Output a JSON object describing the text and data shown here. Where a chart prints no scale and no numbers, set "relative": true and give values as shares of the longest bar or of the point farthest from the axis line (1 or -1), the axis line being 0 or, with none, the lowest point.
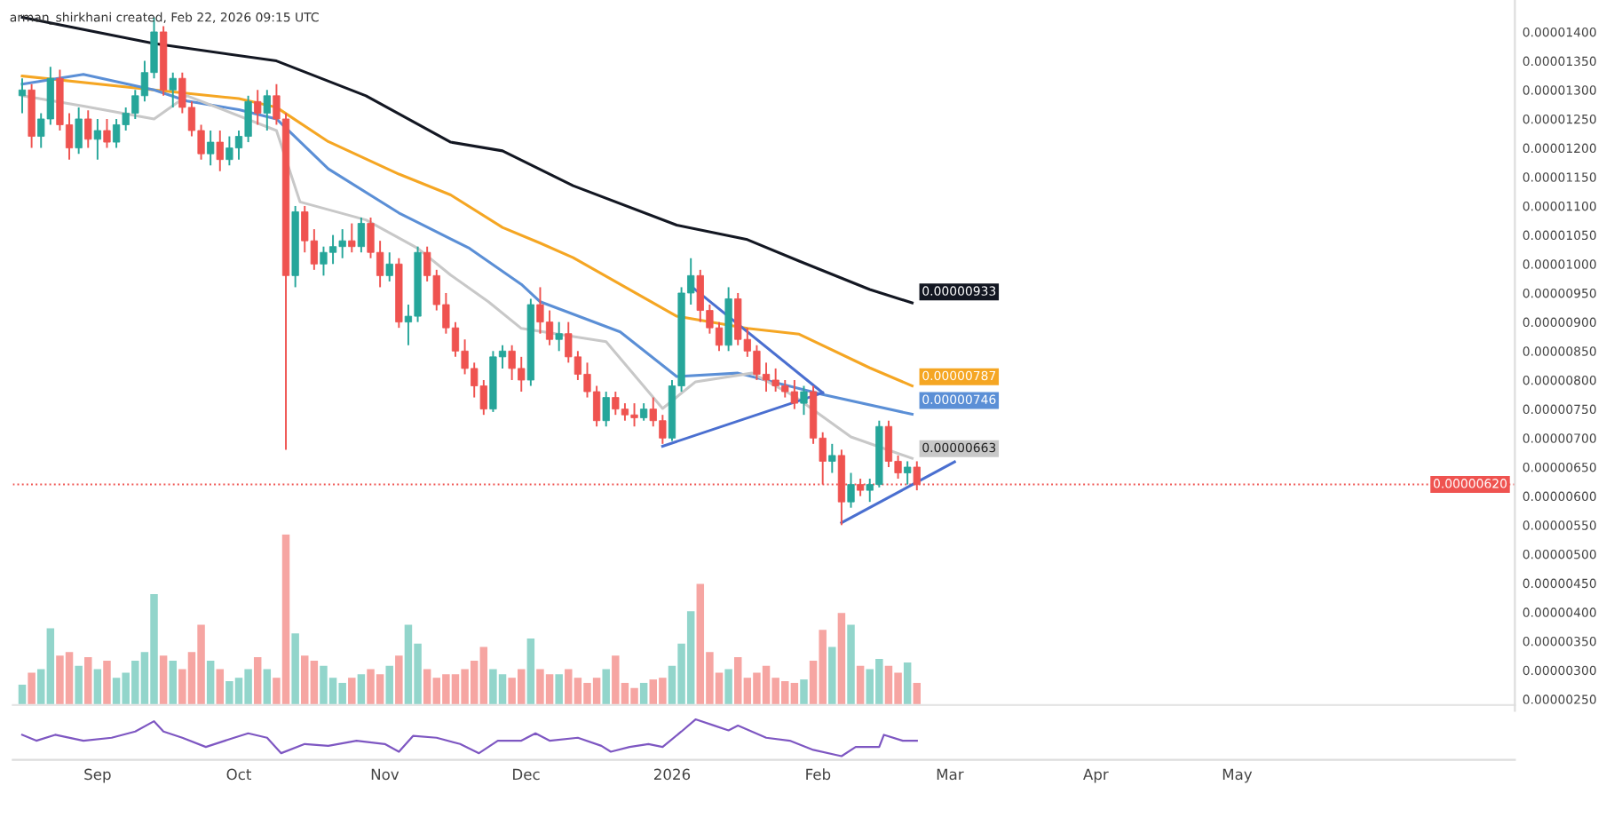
{
  "chart_data": [
    {
      "type": "candlestick",
      "title": "arman_shirkhani created, Feb 22, 2026 09:15 UTC",
      "x": [
        "2025-08-16",
        "2025-08-18",
        "2025-08-20",
        "2025-08-22",
        "2025-08-24",
        "2025-08-26",
        "2025-08-28",
        "2025-08-30",
        "2025-09-01",
        "2025-09-03",
        "2025-09-05",
        "2025-09-07",
        "2025-09-09",
        "2025-09-11",
        "2025-09-13",
        "2025-09-15",
        "2025-09-17",
        "2025-09-19",
        "2025-09-21",
        "2025-09-23",
        "2025-09-25",
        "2025-09-27",
        "2025-09-29",
        "2025-10-01",
        "2025-10-03",
        "2025-10-05",
        "2025-10-07",
        "2025-10-09",
        "2025-10-11",
        "2025-10-13",
        "2025-10-15",
        "2025-10-17",
        "2025-10-19",
        "2025-10-21",
        "2025-10-23",
        "2025-10-25",
        "2025-10-27",
        "2025-10-29",
        "2025-10-31",
        "2025-11-02",
        "2025-11-04",
        "2025-11-06",
        "2025-11-08",
        "2025-11-10",
        "2025-11-12",
        "2025-11-14",
        "2025-11-16",
        "2025-11-18",
        "2025-11-20",
        "2025-11-22",
        "2025-11-24",
        "2025-11-26",
        "2025-11-28",
        "2025-11-30",
        "2025-12-02",
        "2025-12-04",
        "2025-12-06",
        "2025-12-08",
        "2025-12-10",
        "2025-12-12",
        "2025-12-14",
        "2025-12-16",
        "2025-12-18",
        "2025-12-20",
        "2025-12-22",
        "2025-12-24",
        "2025-12-26",
        "2025-12-28",
        "2025-12-30",
        "2026-01-01",
        "2026-01-03",
        "2026-01-05",
        "2026-01-07",
        "2026-01-09",
        "2026-01-11",
        "2026-01-13",
        "2026-01-15",
        "2026-01-17",
        "2026-01-19",
        "2026-01-21",
        "2026-01-23",
        "2026-01-25",
        "2026-01-27",
        "2026-01-29",
        "2026-01-31",
        "2026-02-02",
        "2026-02-04",
        "2026-02-06",
        "2026-02-08",
        "2026-02-10",
        "2026-02-12",
        "2026-02-14",
        "2026-02-16",
        "2026-02-18",
        "2026-02-20",
        "2026-02-22"
      ],
      "ohlc": [
        [
          1.29e-05,
          1.32e-05,
          1.26e-05,
          1.3e-05
        ],
        [
          1.3e-05,
          1.31e-05,
          1.2e-05,
          1.22e-05
        ],
        [
          1.22e-05,
          1.26e-05,
          1.2e-05,
          1.25e-05
        ],
        [
          1.25e-05,
          1.34e-05,
          1.24e-05,
          1.32e-05
        ],
        [
          1.32e-05,
          1.335e-05,
          1.23e-05,
          1.24e-05
        ],
        [
          1.24e-05,
          1.26e-05,
          1.18e-05,
          1.2e-05
        ],
        [
          1.2e-05,
          1.27e-05,
          1.19e-05,
          1.25e-05
        ],
        [
          1.25e-05,
          1.265e-05,
          1.2e-05,
          1.215e-05
        ],
        [
          1.215e-05,
          1.25e-05,
          1.18e-05,
          1.23e-05
        ],
        [
          1.23e-05,
          1.25e-05,
          1.2e-05,
          1.21e-05
        ],
        [
          1.21e-05,
          1.25e-05,
          1.2e-05,
          1.24e-05
        ],
        [
          1.24e-05,
          1.27e-05,
          1.23e-05,
          1.26e-05
        ],
        [
          1.26e-05,
          1.3e-05,
          1.25e-05,
          1.29e-05
        ],
        [
          1.29e-05,
          1.35e-05,
          1.28e-05,
          1.33e-05
        ],
        [
          1.33e-05,
          1.425e-05,
          1.32e-05,
          1.4e-05
        ],
        [
          1.4e-05,
          1.41e-05,
          1.29e-05,
          1.3e-05
        ],
        [
          1.3e-05,
          1.33e-05,
          1.27e-05,
          1.32e-05
        ],
        [
          1.32e-05,
          1.33e-05,
          1.26e-05,
          1.27e-05
        ],
        [
          1.27e-05,
          1.28e-05,
          1.22e-05,
          1.23e-05
        ],
        [
          1.23e-05,
          1.24e-05,
          1.18e-05,
          1.19e-05
        ],
        [
          1.19e-05,
          1.23e-05,
          1.17e-05,
          1.21e-05
        ],
        [
          1.21e-05,
          1.23e-05,
          1.16e-05,
          1.18e-05
        ],
        [
          1.18e-05,
          1.22e-05,
          1.17e-05,
          1.2e-05
        ],
        [
          1.2e-05,
          1.23e-05,
          1.18e-05,
          1.22e-05
        ],
        [
          1.22e-05,
          1.29e-05,
          1.21e-05,
          1.28e-05
        ],
        [
          1.28e-05,
          1.3e-05,
          1.24e-05,
          1.26e-05
        ],
        [
          1.26e-05,
          1.3e-05,
          1.23e-05,
          1.29e-05
        ],
        [
          1.29e-05,
          1.31e-05,
          1.24e-05,
          1.25e-05
        ],
        [
          1.25e-05,
          1.26e-05,
          6.8e-06,
          9.8e-06
        ],
        [
          9.8e-06,
          1.1e-05,
          9.6e-06,
          1.09e-05
        ],
        [
          1.09e-05,
          1.1e-05,
          1.02e-05,
          1.04e-05
        ],
        [
          1.04e-05,
          1.06e-05,
          9.9e-06,
          1e-05
        ],
        [
          1e-05,
          1.03e-05,
          9.8e-06,
          1.02e-05
        ],
        [
          1.02e-05,
          1.05e-05,
          1e-05,
          1.03e-05
        ],
        [
          1.03e-05,
          1.06e-05,
          1.01e-05,
          1.04e-05
        ],
        [
          1.04e-05,
          1.07e-05,
          1.02e-05,
          1.03e-05
        ],
        [
          1.03e-05,
          1.08e-05,
          1.02e-05,
          1.07e-05
        ],
        [
          1.07e-05,
          1.08e-05,
          1.01e-05,
          1.02e-05
        ],
        [
          1.02e-05,
          1.04e-05,
          9.6e-06,
          9.8e-06
        ],
        [
          9.8e-06,
          1.02e-05,
          9.7e-06,
          1e-05
        ],
        [
          1e-05,
          1.01e-05,
          8.9e-06,
          9e-06
        ],
        [
          9e-06,
          9.3e-06,
          8.6e-06,
          9.1e-06
        ],
        [
          9.1e-06,
          1.03e-05,
          9e-06,
          1.02e-05
        ],
        [
          1.02e-05,
          1.03e-05,
          9.7e-06,
          9.8e-06
        ],
        [
          9.8e-06,
          9.9e-06,
          9.2e-06,
          9.3e-06
        ],
        [
          9.3e-06,
          9.5e-06,
          8.8e-06,
          8.9e-06
        ],
        [
          8.9e-06,
          9e-06,
          8.4e-06,
          8.5e-06
        ],
        [
          8.5e-06,
          8.7e-06,
          8.1e-06,
          8.2e-06
        ],
        [
          8.2e-06,
          8.3e-06,
          7.7e-06,
          7.9e-06
        ],
        [
          7.9e-06,
          8e-06,
          7.4e-06,
          7.5e-06
        ],
        [
          7.5e-06,
          8.5e-06,
          7.45e-06,
          8.4e-06
        ],
        [
          8.4e-06,
          8.6e-06,
          8.2e-06,
          8.5e-06
        ],
        [
          8.5e-06,
          8.6e-06,
          8e-06,
          8.2e-06
        ],
        [
          8.2e-06,
          8.4e-06,
          7.8e-06,
          8e-06
        ],
        [
          8e-06,
          9.4e-06,
          7.9e-06,
          9.3e-06
        ],
        [
          9.3e-06,
          9.6e-06,
          8.8e-06,
          9e-06
        ],
        [
          9e-06,
          9.2e-06,
          8.6e-06,
          8.7e-06
        ],
        [
          8.7e-06,
          9e-06,
          8.5e-06,
          8.8e-06
        ],
        [
          8.8e-06,
          9e-06,
          8.3e-06,
          8.4e-06
        ],
        [
          8.4e-06,
          8.5e-06,
          8e-06,
          8.1e-06
        ],
        [
          8.1e-06,
          8.3e-06,
          7.7e-06,
          7.8e-06
        ],
        [
          7.8e-06,
          7.9e-06,
          7.2e-06,
          7.3e-06
        ],
        [
          7.3e-06,
          7.8e-06,
          7.2e-06,
          7.7e-06
        ],
        [
          7.7e-06,
          7.8e-06,
          7.4e-06,
          7.5e-06
        ],
        [
          7.5e-06,
          7.6e-06,
          7.3e-06,
          7.4e-06
        ],
        [
          7.4e-06,
          7.6e-06,
          7.2e-06,
          7.35e-06
        ],
        [
          7.35e-06,
          7.6e-06,
          7.3e-06,
          7.5e-06
        ],
        [
          7.5e-06,
          7.7e-06,
          7.2e-06,
          7.3e-06
        ],
        [
          7.3e-06,
          7.4e-06,
          6.9e-06,
          7e-06
        ],
        [
          7e-06,
          8e-06,
          6.95e-06,
          7.9e-06
        ],
        [
          7.9e-06,
          9.6e-06,
          7.8e-06,
          9.5e-06
        ],
        [
          9.5e-06,
          1.01e-05,
          9.3e-06,
          9.8e-06
        ],
        [
          9.8e-06,
          9.9e-06,
          9e-06,
          9.2e-06
        ],
        [
          9.2e-06,
          9.3e-06,
          8.8e-06,
          8.9e-06
        ],
        [
          8.9e-06,
          9e-06,
          8.5e-06,
          8.6e-06
        ],
        [
          8.6e-06,
          9.6e-06,
          8.5e-06,
          9.4e-06
        ],
        [
          9.4e-06,
          9.5e-06,
          8.6e-06,
          8.7e-06
        ],
        [
          8.7e-06,
          8.9e-06,
          8.4e-06,
          8.5e-06
        ],
        [
          8.5e-06,
          8.6e-06,
          8e-06,
          8.1e-06
        ],
        [
          8.1e-06,
          8.3e-06,
          7.8e-06,
          8e-06
        ],
        [
          8e-06,
          8.2e-06,
          7.8e-06,
          7.9e-06
        ],
        [
          7.9e-06,
          8e-06,
          7.7e-06,
          7.8e-06
        ],
        [
          7.8e-06,
          8e-06,
          7.5e-06,
          7.6e-06
        ],
        [
          7.6e-06,
          7.9e-06,
          7.4e-06,
          7.8e-06
        ],
        [
          7.8e-06,
          7.9e-06,
          6.9e-06,
          7e-06
        ],
        [
          7e-06,
          7.1e-06,
          6.2e-06,
          6.6e-06
        ],
        [
          6.6e-06,
          6.9e-06,
          6.4e-06,
          6.7e-06
        ],
        [
          6.7e-06,
          6.8e-06,
          5.5e-06,
          5.9e-06
        ],
        [
          5.9e-06,
          6.4e-06,
          5.8e-06,
          6.2e-06
        ],
        [
          6.2e-06,
          6.3e-06,
          6e-06,
          6.1e-06
        ],
        [
          6.1e-06,
          6.3e-06,
          5.9e-06,
          6.2e-06
        ],
        [
          6.2e-06,
          7.3e-06,
          6.15e-06,
          7.2e-06
        ],
        [
          7.2e-06,
          7.3e-06,
          6.5e-06,
          6.6e-06
        ],
        [
          6.6e-06,
          6.7e-06,
          6.3e-06,
          6.4e-06
        ],
        [
          6.4e-06,
          6.6e-06,
          6.2e-06,
          6.5e-06
        ],
        [
          6.5e-06,
          6.6e-06,
          6.1e-06,
          6.2e-06
        ]
      ],
      "colors": [
        "#26a69a",
        "#ef5350",
        "#26a69a",
        "#26a69a",
        "#ef5350",
        "#ef5350",
        "#26a69a",
        "#ef5350",
        "#26a69a",
        "#ef5350",
        "#26a69a",
        "#26a69a",
        "#26a69a",
        "#26a69a",
        "#26a69a",
        "#ef5350",
        "#26a69a",
        "#ef5350",
        "#ef5350",
        "#ef5350",
        "#26a69a",
        "#ef5350",
        "#26a69a",
        "#26a69a",
        "#26a69a",
        "#ef5350",
        "#26a69a",
        "#ef5350",
        "#ef5350",
        "#26a69a",
        "#ef5350",
        "#ef5350",
        "#26a69a",
        "#26a69a",
        "#26a69a",
        "#ef5350",
        "#26a69a",
        "#ef5350",
        "#ef5350",
        "#26a69a",
        "#ef5350",
        "#26a69a",
        "#26a69a",
        "#ef5350",
        "#ef5350",
        "#ef5350",
        "#ef5350",
        "#ef5350",
        "#ef5350",
        "#ef5350",
        "#26a69a",
        "#26a69a",
        "#ef5350",
        "#ef5350",
        "#26a69a",
        "#ef5350",
        "#ef5350",
        "#26a69a",
        "#ef5350",
        "#ef5350",
        "#ef5350",
        "#ef5350",
        "#26a69a",
        "#ef5350",
        "#ef5350",
        "#ef5350",
        "#26a69a",
        "#ef5350",
        "#ef5350",
        "#26a69a",
        "#26a69a",
        "#26a69a",
        "#ef5350",
        "#ef5350",
        "#ef5350",
        "#26a69a",
        "#ef5350",
        "#ef5350",
        "#ef5350",
        "#ef5350",
        "#ef5350",
        "#ef5350",
        "#ef5350",
        "#26a69a",
        "#ef5350",
        "#ef5350",
        "#26a69a",
        "#ef5350",
        "#26a69a",
        "#ef5350",
        "#26a69a",
        "#26a69a",
        "#ef5350",
        "#ef5350",
        "#26a69a",
        "#ef5350"
      ],
      "series": [
        {
          "type": "line",
          "color": "#131722",
          "x": [
            "2025-08-16",
            "2025-09-13",
            "2025-10-09",
            "2025-10-28",
            "2025-11-15",
            "2025-11-26",
            "2025-12-11",
            "2026-01-02",
            "2026-01-17",
            "2026-01-28",
            "2026-02-12",
            "2026-02-21"
          ],
          "values": [
            1.425e-05,
            1.38e-05,
            1.35e-05,
            1.29e-05,
            1.21e-05,
            1.195e-05,
            1.135e-05,
            1.067e-05,
            1.042e-05,
            1.005e-05,
            9.56e-06,
            9.33e-06
          ]
        },
        {
          "type": "line",
          "color": "#f5a623",
          "x": [
            "2025-08-16",
            "2025-09-13",
            "2025-10-01",
            "2025-10-09",
            "2025-10-20",
            "2025-11-04",
            "2025-11-15",
            "2025-11-26",
            "2025-12-04",
            "2025-12-11",
            "2026-01-02",
            "2026-01-17",
            "2026-01-28",
            "2026-02-12",
            "2026-02-21"
          ],
          "values": [
            1.324e-05,
            1.3e-05,
            1.285e-05,
            1.27e-05,
            1.211e-05,
            1.155e-05,
            1.119e-05,
            1.063e-05,
            1.036e-05,
            1.011e-05,
            9.1e-06,
            8.89e-06,
            8.79e-06,
            8.21e-06,
            7.9e-06
          ]
        },
        {
          "type": "line",
          "color": "#5b8fd6",
          "x": [
            "2025-08-16",
            "2025-08-29",
            "2025-09-13",
            "2025-09-20",
            "2025-10-01",
            "2025-10-09",
            "2025-10-20",
            "2025-11-04",
            "2025-11-19",
            "2025-11-30",
            "2025-12-04",
            "2025-12-21",
            "2026-01-02",
            "2026-01-15",
            "2026-02-02",
            "2026-02-21"
          ],
          "values": [
            1.31e-05,
            1.327e-05,
            1.3e-05,
            1.281e-05,
            1.266e-05,
            1.25e-05,
            1.164e-05,
            1.088e-05,
            1.027e-05,
            9.65e-06,
            9.35e-06,
            8.83e-06,
            8.06e-06,
            8.12e-06,
            7.75e-06,
            7.41e-06
          ]
        },
        {
          "type": "line",
          "color": "#c8c8c8",
          "x": [
            "2025-08-16",
            "2025-08-29",
            "2025-09-13",
            "2025-09-20",
            "2025-10-09",
            "2025-10-14",
            "2025-10-28",
            "2025-11-08",
            "2025-11-15",
            "2025-11-23",
            "2025-11-30",
            "2025-12-18",
            "2025-12-30",
            "2026-01-06",
            "2026-01-18",
            "2026-01-27",
            "2026-02-08",
            "2026-02-21"
          ],
          "values": [
            1.29e-05,
            1.272e-05,
            1.25e-05,
            1.29e-05,
            1.23e-05,
            1.107e-05,
            1.076e-05,
            1.027e-05,
            9.81e-06,
            9.35e-06,
            8.89e-06,
            8.66e-06,
            7.51e-06,
            7.97e-06,
            8.12e-06,
            7.72e-06,
            7.02e-06,
            6.65e-06
          ]
        },
        {
          "type": "line",
          "color": "#4a6fd0",
          "x": [
            "2025-12-30",
            "2026-02-02"
          ],
          "values": [
            6.86e-06,
            7.78e-06
          ]
        },
        {
          "type": "line",
          "color": "#4a6fd0",
          "x": [
            "2026-01-05",
            "2026-02-02"
          ],
          "values": [
            9.62e-06,
            7.78e-06
          ]
        },
        {
          "type": "line",
          "color": "#4a6fd0",
          "x": [
            "2026-02-06",
            "2026-03-02"
          ],
          "values": [
            5.54e-06,
            6.59e-06
          ]
        }
      ],
      "xlim": [
        "2025-08-14",
        "2026-06-29"
      ],
      "ylim": [
        2.3e-06,
        1.455e-05
      ],
      "yticks": [
        {
          "value": 2.5e-06,
          "label": "0.00000250"
        },
        {
          "value": 3e-06,
          "label": "0.00000300"
        },
        {
          "value": 3.5e-06,
          "label": "0.00000350"
        },
        {
          "value": 4e-06,
          "label": "0.00000400"
        },
        {
          "value": 4.5e-06,
          "label": "0.00000450"
        },
        {
          "value": 5e-06,
          "label": "0.00000500"
        },
        {
          "value": 5.5e-06,
          "label": "0.00000550"
        },
        {
          "value": 6e-06,
          "label": "0.00000600"
        },
        {
          "value": 6.5e-06,
          "label": "0.00000650"
        },
        {
          "value": 7e-06,
          "label": "0.00000700"
        },
        {
          "value": 7.5e-06,
          "label": "0.00000750"
        },
        {
          "value": 8e-06,
          "label": "0.00000800"
        },
        {
          "value": 8.5e-06,
          "label": "0.00000850"
        },
        {
          "value": 9e-06,
          "label": "0.00000900"
        },
        {
          "value": 9.5e-06,
          "label": "0.00000950"
        },
        {
          "value": 1e-05,
          "label": "0.00001000"
        },
        {
          "value": 1.05e-05,
          "label": "0.00001050"
        },
        {
          "value": 1.1e-05,
          "label": "0.00001100"
        },
        {
          "value": 1.15e-05,
          "label": "0.00001150"
        },
        {
          "value": 1.2e-05,
          "label": "0.00001200"
        },
        {
          "value": 1.25e-05,
          "label": "0.00001250"
        },
        {
          "value": 1.3e-05,
          "label": "0.00001300"
        },
        {
          "value": 1.35e-05,
          "label": "0.00001350"
        },
        {
          "value": 1.4e-05,
          "label": "0.00001400"
        }
      ],
      "tick_labels": "y",
      "ref_lines": [
        {
          "axis": "y",
          "value": 6.2e-06,
          "label": "0.00000620",
          "color": "#ef5350",
          "line_style": "dotted"
        }
      ],
      "annotations": [
        {
          "text": "0.00000933",
          "x": "2026-02-22",
          "y": 9.33e-06
        },
        {
          "text": "0.00000787",
          "x": "2026-02-22",
          "y": 7.87e-06
        },
        {
          "text": "0.00000746",
          "x": "2026-02-22",
          "y": 7.46e-06
        },
        {
          "text": "0.00000663",
          "x": "2026-02-22",
          "y": 6.63e-06
        }
      ]
    },
    {
      "type": "bar",
      "relative": true,
      "xlim": [
        "2025-08-14",
        "2026-06-29"
      ],
      "x": [
        "2025-08-16",
        "2025-08-18",
        "2025-08-20",
        "2025-08-22",
        "2025-08-24",
        "2025-08-26",
        "2025-08-28",
        "2025-08-30",
        "2025-09-01",
        "2025-09-03",
        "2025-09-05",
        "2025-09-07",
        "2025-09-09",
        "2025-09-11",
        "2025-09-13",
        "2025-09-15",
        "2025-09-17",
        "2025-09-19",
        "2025-09-21",
        "2025-09-23",
        "2025-09-25",
        "2025-09-27",
        "2025-09-29",
        "2025-10-01",
        "2025-10-03",
        "2025-10-05",
        "2025-10-07",
        "2025-10-09",
        "2025-10-11",
        "2025-10-13",
        "2025-10-15",
        "2025-10-17",
        "2025-10-19",
        "2025-10-21",
        "2025-10-23",
        "2025-10-25",
        "2025-10-27",
        "2025-10-29",
        "2025-10-31",
        "2025-11-02",
        "2025-11-04",
        "2025-11-06",
        "2025-11-08",
        "2025-11-10",
        "2025-11-12",
        "2025-11-14",
        "2025-11-16",
        "2025-11-18",
        "2025-11-20",
        "2025-11-22",
        "2025-11-24",
        "2025-11-26",
        "2025-11-28",
        "2025-11-30",
        "2025-12-02",
        "2025-12-04",
        "2025-12-06",
        "2025-12-08",
        "2025-12-10",
        "2025-12-12",
        "2025-12-14",
        "2025-12-16",
        "2025-12-18",
        "2025-12-20",
        "2025-12-22",
        "2025-12-24",
        "2025-12-26",
        "2025-12-28",
        "2025-12-30",
        "2026-01-01",
        "2026-01-03",
        "2026-01-05",
        "2026-01-07",
        "2026-01-09",
        "2026-01-11",
        "2026-01-13",
        "2026-01-15",
        "2026-01-17",
        "2026-01-19",
        "2026-01-21",
        "2026-01-23",
        "2026-01-25",
        "2026-01-27",
        "2026-01-29",
        "2026-01-31",
        "2026-02-02",
        "2026-02-04",
        "2026-02-06",
        "2026-02-08",
        "2026-02-10",
        "2026-02-12",
        "2026-02-14",
        "2026-02-16",
        "2026-02-18",
        "2026-02-20",
        "2026-02-22"
      ],
      "values": [
        0.12,
        0.19,
        0.21,
        0.45,
        0.29,
        0.31,
        0.23,
        0.28,
        0.21,
        0.26,
        0.16,
        0.19,
        0.26,
        0.31,
        0.65,
        0.29,
        0.26,
        0.21,
        0.31,
        0.47,
        0.26,
        0.21,
        0.14,
        0.16,
        0.21,
        0.28,
        0.21,
        0.16,
        1,
        0.42,
        0.29,
        0.26,
        0.23,
        0.16,
        0.13,
        0.16,
        0.18,
        0.21,
        0.18,
        0.23,
        0.29,
        0.47,
        0.36,
        0.21,
        0.16,
        0.18,
        0.18,
        0.21,
        0.26,
        0.34,
        0.21,
        0.18,
        0.16,
        0.21,
        0.39,
        0.21,
        0.18,
        0.18,
        0.21,
        0.16,
        0.13,
        0.16,
        0.21,
        0.29,
        0.13,
        0.1,
        0.13,
        0.15,
        0.16,
        0.23,
        0.36,
        0.55,
        0.71,
        0.31,
        0.19,
        0.21,
        0.28,
        0.16,
        0.19,
        0.23,
        0.16,
        0.14,
        0.13,
        0.15,
        0.26,
        0.44,
        0.34,
        0.54,
        0.47,
        0.23,
        0.21,
        0.27,
        0.23,
        0.19,
        0.25,
        0.13
      ],
      "colors": [
        "#92d5cb",
        "#f6a5a2",
        "#92d5cb",
        "#92d5cb",
        "#f6a5a2",
        "#f6a5a2",
        "#92d5cb",
        "#f6a5a2",
        "#92d5cb",
        "#f6a5a2",
        "#92d5cb",
        "#92d5cb",
        "#92d5cb",
        "#92d5cb",
        "#92d5cb",
        "#f6a5a2",
        "#92d5cb",
        "#f6a5a2",
        "#f6a5a2",
        "#f6a5a2",
        "#92d5cb",
        "#f6a5a2",
        "#92d5cb",
        "#92d5cb",
        "#92d5cb",
        "#f6a5a2",
        "#92d5cb",
        "#f6a5a2",
        "#f6a5a2",
        "#92d5cb",
        "#f6a5a2",
        "#f6a5a2",
        "#92d5cb",
        "#92d5cb",
        "#92d5cb",
        "#f6a5a2",
        "#92d5cb",
        "#f6a5a2",
        "#f6a5a2",
        "#92d5cb",
        "#f6a5a2",
        "#92d5cb",
        "#92d5cb",
        "#f6a5a2",
        "#f6a5a2",
        "#f6a5a2",
        "#f6a5a2",
        "#f6a5a2",
        "#f6a5a2",
        "#f6a5a2",
        "#92d5cb",
        "#92d5cb",
        "#f6a5a2",
        "#f6a5a2",
        "#92d5cb",
        "#f6a5a2",
        "#f6a5a2",
        "#92d5cb",
        "#f6a5a2",
        "#f6a5a2",
        "#f6a5a2",
        "#f6a5a2",
        "#92d5cb",
        "#f6a5a2",
        "#f6a5a2",
        "#f6a5a2",
        "#92d5cb",
        "#f6a5a2",
        "#f6a5a2",
        "#92d5cb",
        "#92d5cb",
        "#92d5cb",
        "#f6a5a2",
        "#f6a5a2",
        "#f6a5a2",
        "#92d5cb",
        "#f6a5a2",
        "#f6a5a2",
        "#f6a5a2",
        "#f6a5a2",
        "#f6a5a2",
        "#f6a5a2",
        "#f6a5a2",
        "#92d5cb",
        "#f6a5a2",
        "#f6a5a2",
        "#92d5cb",
        "#f6a5a2",
        "#92d5cb",
        "#f6a5a2",
        "#92d5cb",
        "#92d5cb",
        "#f6a5a2",
        "#f6a5a2",
        "#92d5cb",
        "#f6a5a2"
      ]
    },
    {
      "type": "line",
      "relative": true,
      "tick_labels": "x",
      "xlim": [
        "2025-08-14",
        "2026-06-29"
      ],
      "xticks": [
        {
          "value": "2025-09-01",
          "label": "Sep"
        },
        {
          "value": "2025-10-01",
          "label": "Oct"
        },
        {
          "value": "2025-11-01",
          "label": "Nov"
        },
        {
          "value": "2025-12-01",
          "label": "Dec"
        },
        {
          "value": "2026-01-01",
          "label": "2026"
        },
        {
          "value": "2026-02-01",
          "label": "Feb"
        },
        {
          "value": "2026-03-01",
          "label": "Mar"
        },
        {
          "value": "2026-04-01",
          "label": "Apr"
        },
        {
          "value": "2026-05-01",
          "label": "May"
        }
      ],
      "series": [
        {
          "color": "#7e57c2",
          "x": [
            "2025-08-16",
            "2025-08-19",
            "2025-08-23",
            "2025-08-29",
            "2025-09-04",
            "2025-09-09",
            "2025-09-13",
            "2025-09-15",
            "2025-09-19",
            "2025-09-24",
            "2025-09-30",
            "2025-10-03",
            "2025-10-07",
            "2025-10-10",
            "2025-10-15",
            "2025-10-20",
            "2025-10-26",
            "2025-11-01",
            "2025-11-04",
            "2025-11-07",
            "2025-11-12",
            "2025-11-17",
            "2025-11-21",
            "2025-11-25",
            "2025-11-30",
            "2025-12-03",
            "2025-12-06",
            "2025-12-12",
            "2025-12-17",
            "2025-12-19",
            "2025-12-23",
            "2025-12-27",
            "2025-12-30",
            "2026-01-03",
            "2026-01-06",
            "2026-01-10",
            "2026-01-13",
            "2026-01-15",
            "2026-01-21",
            "2026-01-26",
            "2026-01-31",
            "2026-02-06",
            "2026-02-09",
            "2026-02-14",
            "2026-02-15",
            "2026-02-19",
            "2026-02-22"
          ],
          "values": [
            0.58,
            0.42,
            0.58,
            0.42,
            0.5,
            0.67,
            0.95,
            0.67,
            0.5,
            0.25,
            0.5,
            0.62,
            0.5,
            0.08,
            0.33,
            0.28,
            0.42,
            0.33,
            0.12,
            0.55,
            0.5,
            0.33,
            0.08,
            0.42,
            0.42,
            0.62,
            0.42,
            0.5,
            0.28,
            0.12,
            0.25,
            0.33,
            0.25,
            0.67,
            1,
            0.83,
            0.7,
            0.83,
            0.5,
            0.42,
            0.17,
            0,
            0.25,
            0.25,
            0.58,
            0.42,
            0.42
          ]
        }
      ]
    }
  ]
}
